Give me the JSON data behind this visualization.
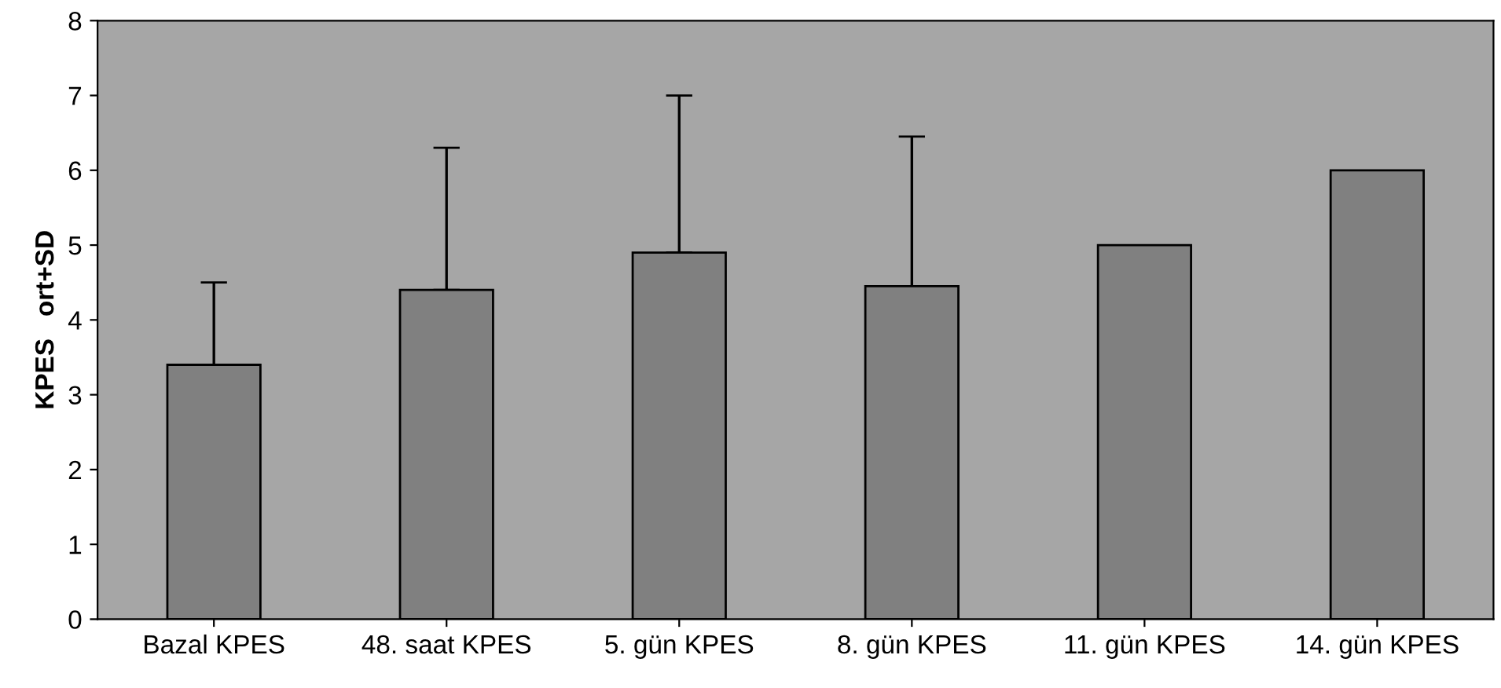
{
  "chart_data": {
    "type": "bar",
    "ylabel": "KPES   ort+SD",
    "categories": [
      "Bazal KPES",
      "48. saat KPES",
      "5. gün KPES",
      "8. gün KPES",
      "11. gün KPES",
      "14. gün KPES"
    ],
    "values": [
      3.4,
      4.4,
      4.9,
      4.45,
      5.0,
      6.0
    ],
    "errors": [
      [
        3.4,
        4.5
      ],
      [
        4.4,
        6.3
      ],
      [
        4.9,
        7.0
      ],
      [
        4.45,
        6.45
      ],
      null,
      null
    ],
    "color": "#808080",
    "ylim": [
      0,
      8
    ],
    "yticks": [
      0,
      1,
      2,
      3,
      4,
      5,
      6,
      7,
      8
    ],
    "grid": false
  }
}
